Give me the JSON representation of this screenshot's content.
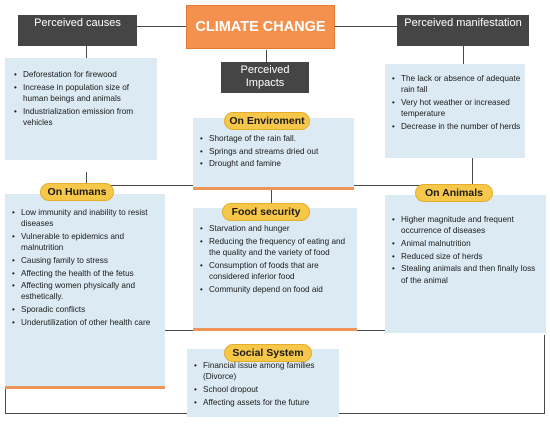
{
  "title": "CLIMATE CHANGE",
  "headers": {
    "causes": "Perceived causes",
    "impacts": "Perceived Impacts",
    "manifestation": "Perceived manifestation"
  },
  "causes": {
    "items": [
      "Deforestation for firewood",
      "Increase in population size of human beings and animals",
      "Industrialization emission from vehicles"
    ]
  },
  "manifestation": {
    "items": [
      "The lack or absence of adequate rain fall",
      "Very hot weather or increased temperature",
      "Decrease in the number of herds"
    ]
  },
  "environment": {
    "label": "On Enviroment",
    "items": [
      "Shortage of the rain fall.",
      "Springs and streams dried out",
      "Drought and famine"
    ]
  },
  "humans": {
    "label": "On Humans",
    "items": [
      "Low immunity and inability to resist diseases",
      "Vulnerable to epidemics and malnutrition",
      "Causing family to stress",
      "Affecting the health of the fetus",
      "Affecting women physically and esthetically.",
      "Sporadic conflicts",
      "Underutilization of other health care"
    ]
  },
  "food": {
    "label": "Food security",
    "items": [
      "Starvation and hunger",
      "Reducing the frequency of eating and the quality and the variety of food",
      "Consumption of foods that are considered inferior food",
      "Community depend on food aid"
    ]
  },
  "animals": {
    "label": "On Animals",
    "items": [
      "Higher magnitude and frequent occurrence of diseases",
      "Animal malnutrition",
      "Reduced size of herds",
      "Stealing animals and then finally loss of the animal"
    ]
  },
  "social": {
    "label": "Social System",
    "items": [
      "Financial issue among families (Divorce)",
      "School dropout",
      "Affecting assets for the future"
    ]
  },
  "colors": {
    "title_fill": "#f5914e",
    "header_fill": "#454545",
    "panel_fill": "#dbeaf3",
    "label_fill": "#f7c74a",
    "accent_bar": "#f0955a"
  }
}
